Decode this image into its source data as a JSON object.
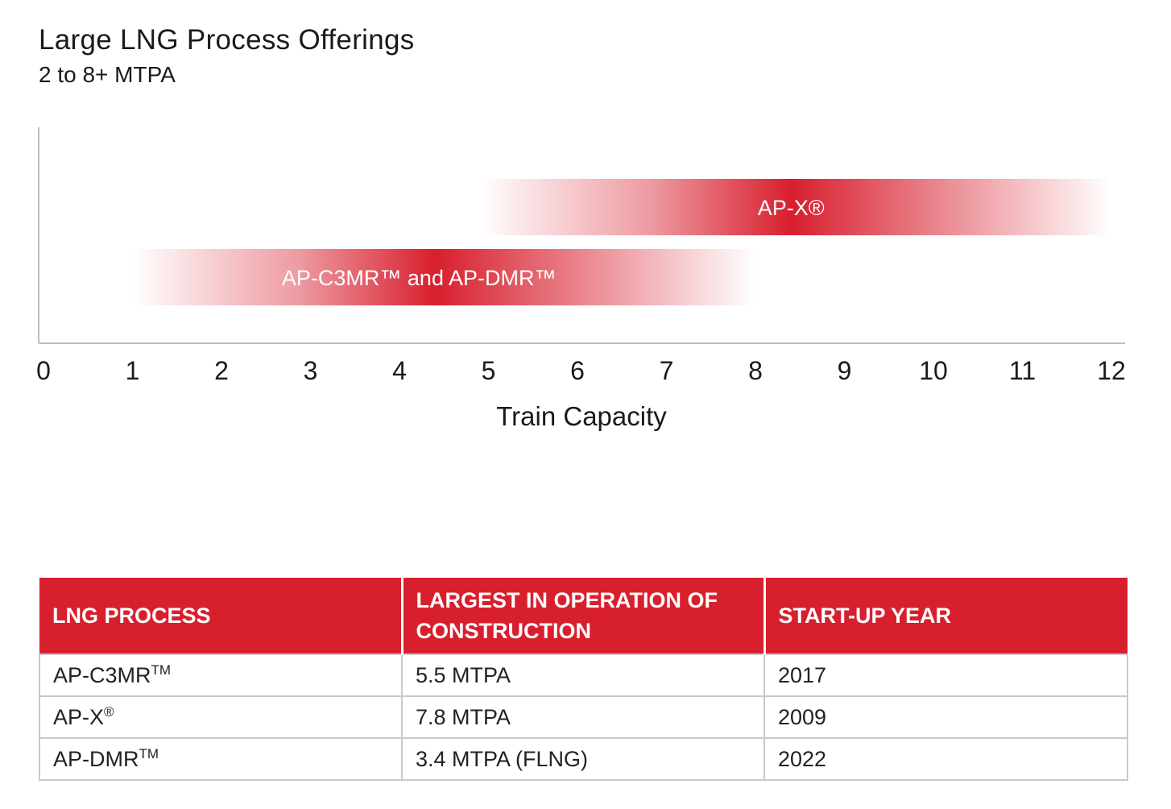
{
  "title": "Large LNG Process Offerings",
  "subtitle": "2 to 8+ MTPA",
  "chart_data": {
    "type": "bar",
    "orientation": "horizontal-range",
    "xlabel": "Train Capacity",
    "xlim": [
      0,
      12
    ],
    "xticks": [
      0,
      1,
      2,
      3,
      4,
      5,
      6,
      7,
      8,
      9,
      10,
      11,
      12
    ],
    "bars": [
      {
        "label": "AP-X®",
        "start": 4.9,
        "end": 12,
        "peak": 8.4
      },
      {
        "label": "AP-C3MR™ and AP-DMR™",
        "start": 1,
        "end": 8,
        "peak": 4.4
      }
    ],
    "colors": {
      "bar": "#d81f2e",
      "axis": "#bdbdbd"
    },
    "grid": false
  },
  "table": {
    "headers": [
      "LNG PROCESS",
      "LARGEST IN OPERATION OF CONSTRUCTION",
      "START-UP YEAR"
    ],
    "rows": [
      {
        "process": "AP-C3MR",
        "mark": "TM",
        "capacity": "5.5 MTPA",
        "year": "2017"
      },
      {
        "process": "AP-X",
        "mark": "®",
        "capacity": "7.8 MTPA",
        "year": "2009"
      },
      {
        "process": "AP-DMR",
        "mark": "TM",
        "capacity": "3.4 MTPA (FLNG)",
        "year": "2022"
      }
    ],
    "header_color": "#d81f2e"
  }
}
